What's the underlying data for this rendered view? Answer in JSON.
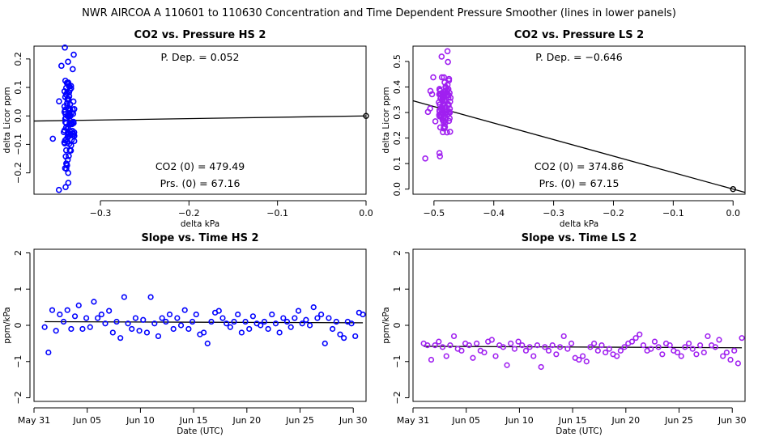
{
  "figure": {
    "title": "NWR   AIRCOA A   110601 to 110630   Concentration and Time Dependent Pressure Smoother (lines in lower panels)"
  },
  "colors": {
    "hs": "#0000ff",
    "ls": "#a020f0",
    "line": "#000000",
    "axis": "#000000"
  },
  "chart_data": [
    {
      "id": "co2-pressure-hs",
      "type": "scatter",
      "title": "CO2 vs. Pressure HS 2",
      "xlabel": "delta kPa",
      "ylabel": "delta Licor ppm",
      "xlim": [
        -0.375,
        0.0
      ],
      "ylim": [
        -0.275,
        0.245
      ],
      "xticks": [
        -0.3,
        -0.2,
        -0.1,
        0.0
      ],
      "xtick_labels": [
        "−0.3",
        "−0.2",
        "−0.1",
        "0.0"
      ],
      "yticks": [
        -0.2,
        -0.1,
        0.0,
        0.1,
        0.2
      ],
      "ytick_labels": [
        "−0.2",
        "−0.1",
        "0.0",
        "0.1",
        "0.2"
      ],
      "color": "#0000ff",
      "fit_line": {
        "x": [
          -0.375,
          0.0
        ],
        "y": [
          -0.018,
          0.0
        ]
      },
      "reference_point": {
        "x": 0.0,
        "y": 0.0
      },
      "annotations": {
        "p_dep": "P. Dep. =  0.052",
        "co2_0": "CO2 (0) =  479.49",
        "prs_0": "Prs. (0) =  67.16"
      },
      "cluster": {
        "x_center": -0.335,
        "x_spread": 0.006,
        "y_min": -0.26,
        "y_max": 0.24,
        "n": 95
      }
    },
    {
      "id": "co2-pressure-ls",
      "type": "scatter",
      "title": "CO2 vs. Pressure LS 2",
      "xlabel": "delta kPa",
      "ylabel": "delta Licor ppm",
      "xlim": [
        -0.535,
        0.02
      ],
      "ylim": [
        -0.02,
        0.56
      ],
      "xticks": [
        -0.5,
        -0.4,
        -0.3,
        -0.2,
        -0.1,
        0.0
      ],
      "xtick_labels": [
        "−0.5",
        "−0.4",
        "−0.3",
        "−0.2",
        "−0.1",
        "0.0"
      ],
      "yticks": [
        0.0,
        0.1,
        0.2,
        0.3,
        0.4,
        0.5
      ],
      "ytick_labels": [
        "0.0",
        "0.1",
        "0.2",
        "0.3",
        "0.4",
        "0.5"
      ],
      "color": "#a020f0",
      "fit_line": {
        "x": [
          -0.535,
          0.02
        ],
        "y": [
          0.346,
          -0.013
        ]
      },
      "reference_point": {
        "x": 0.0,
        "y": 0.0
      },
      "annotations": {
        "p_dep": "P. Dep. =  −0.646",
        "co2_0": "CO2 (0) =  374.86",
        "prs_0": "Prs. (0) =  67.15"
      },
      "cluster": {
        "x_center": -0.482,
        "x_spread": 0.01,
        "y_min": 0.12,
        "y_max": 0.54,
        "n": 95
      }
    },
    {
      "id": "slope-time-hs",
      "type": "scatter",
      "title": "Slope vs. Time HS 2",
      "xlabel": "Date (UTC)",
      "ylabel": "ppm/kPa",
      "xlim": [
        0.0,
        31.2
      ],
      "ylim": [
        -2.1,
        2.1
      ],
      "xticks": [
        0,
        5,
        10,
        15,
        20,
        25,
        30
      ],
      "xtick_labels": [
        "May 31",
        "Jun 05",
        "Jun 10",
        "Jun 15",
        "Jun 20",
        "Jun 25",
        "Jun 30"
      ],
      "yticks": [
        -2,
        -1,
        0,
        1,
        2
      ],
      "ytick_labels": [
        "−2",
        "−1",
        "0",
        "1",
        "2"
      ],
      "color": "#0000ff",
      "fit_line": {
        "x": [
          1.0,
          30.9
        ],
        "y": [
          0.1,
          0.07
        ]
      },
      "y_values": [
        -0.05,
        -0.75,
        0.42,
        -0.15,
        0.3,
        0.1,
        0.42,
        -0.1,
        0.25,
        0.55,
        -0.1,
        0.2,
        -0.05,
        0.65,
        0.2,
        0.3,
        0.05,
        0.4,
        -0.2,
        0.1,
        -0.35,
        0.78,
        0.05,
        -0.1,
        0.2,
        -0.15,
        0.15,
        -0.2,
        0.78,
        0.05,
        -0.3,
        0.2,
        0.1,
        0.3,
        -0.1,
        0.2,
        0.0,
        0.42,
        -0.1,
        0.1,
        0.3,
        -0.25,
        -0.2,
        -0.5,
        0.1,
        0.35,
        0.4,
        0.2,
        0.05,
        -0.05,
        0.1,
        0.3,
        -0.2,
        0.1,
        -0.1,
        0.25,
        0.05,
        0.0,
        0.1,
        -0.1,
        0.3,
        0.05,
        -0.2,
        0.2,
        0.1,
        -0.05,
        0.2,
        0.4,
        0.05,
        0.15,
        0.0,
        0.5,
        0.2,
        0.3,
        -0.5,
        0.2,
        -0.1,
        0.1,
        -0.25,
        -0.35,
        0.1,
        0.05,
        -0.3,
        0.35,
        0.3
      ]
    },
    {
      "id": "slope-time-ls",
      "type": "scatter",
      "title": "Slope vs. Time LS 2",
      "xlabel": "Date (UTC)",
      "ylabel": "ppm/kPa",
      "xlim": [
        0.0,
        31.2
      ],
      "ylim": [
        -2.1,
        2.1
      ],
      "xticks": [
        0,
        5,
        10,
        15,
        20,
        25,
        30
      ],
      "xtick_labels": [
        "May 31",
        "Jun 05",
        "Jun 10",
        "Jun 15",
        "Jun 20",
        "Jun 25",
        "Jun 30"
      ],
      "yticks": [
        -2,
        -1,
        0,
        1,
        2
      ],
      "ytick_labels": [
        "−2",
        "−1",
        "0",
        "1",
        "2"
      ],
      "color": "#a020f0",
      "fit_line": {
        "x": [
          1.0,
          30.9
        ],
        "y": [
          -0.58,
          -0.62
        ]
      },
      "y_values": [
        -0.5,
        -0.55,
        -0.95,
        -0.55,
        -0.45,
        -0.6,
        -0.85,
        -0.55,
        -0.3,
        -0.65,
        -0.7,
        -0.5,
        -0.55,
        -0.9,
        -0.5,
        -0.7,
        -0.75,
        -0.45,
        -0.4,
        -0.85,
        -0.55,
        -0.6,
        -1.1,
        -0.5,
        -0.65,
        -0.45,
        -0.55,
        -0.7,
        -0.6,
        -0.85,
        -0.55,
        -1.15,
        -0.6,
        -0.7,
        -0.55,
        -0.8,
        -0.6,
        -0.3,
        -0.65,
        -0.5,
        -0.9,
        -0.95,
        -0.85,
        -1.0,
        -0.6,
        -0.5,
        -0.7,
        -0.55,
        -0.75,
        -0.65,
        -0.8,
        -0.85,
        -0.7,
        -0.6,
        -0.5,
        -0.45,
        -0.35,
        -0.25,
        -0.55,
        -0.7,
        -0.65,
        -0.45,
        -0.6,
        -0.8,
        -0.5,
        -0.55,
        -0.7,
        -0.75,
        -0.85,
        -0.6,
        -0.5,
        -0.65,
        -0.8,
        -0.55,
        -0.75,
        -0.3,
        -0.55,
        -0.6,
        -0.4,
        -0.85,
        -0.75,
        -0.95,
        -0.7,
        -1.05,
        -0.35
      ]
    }
  ]
}
